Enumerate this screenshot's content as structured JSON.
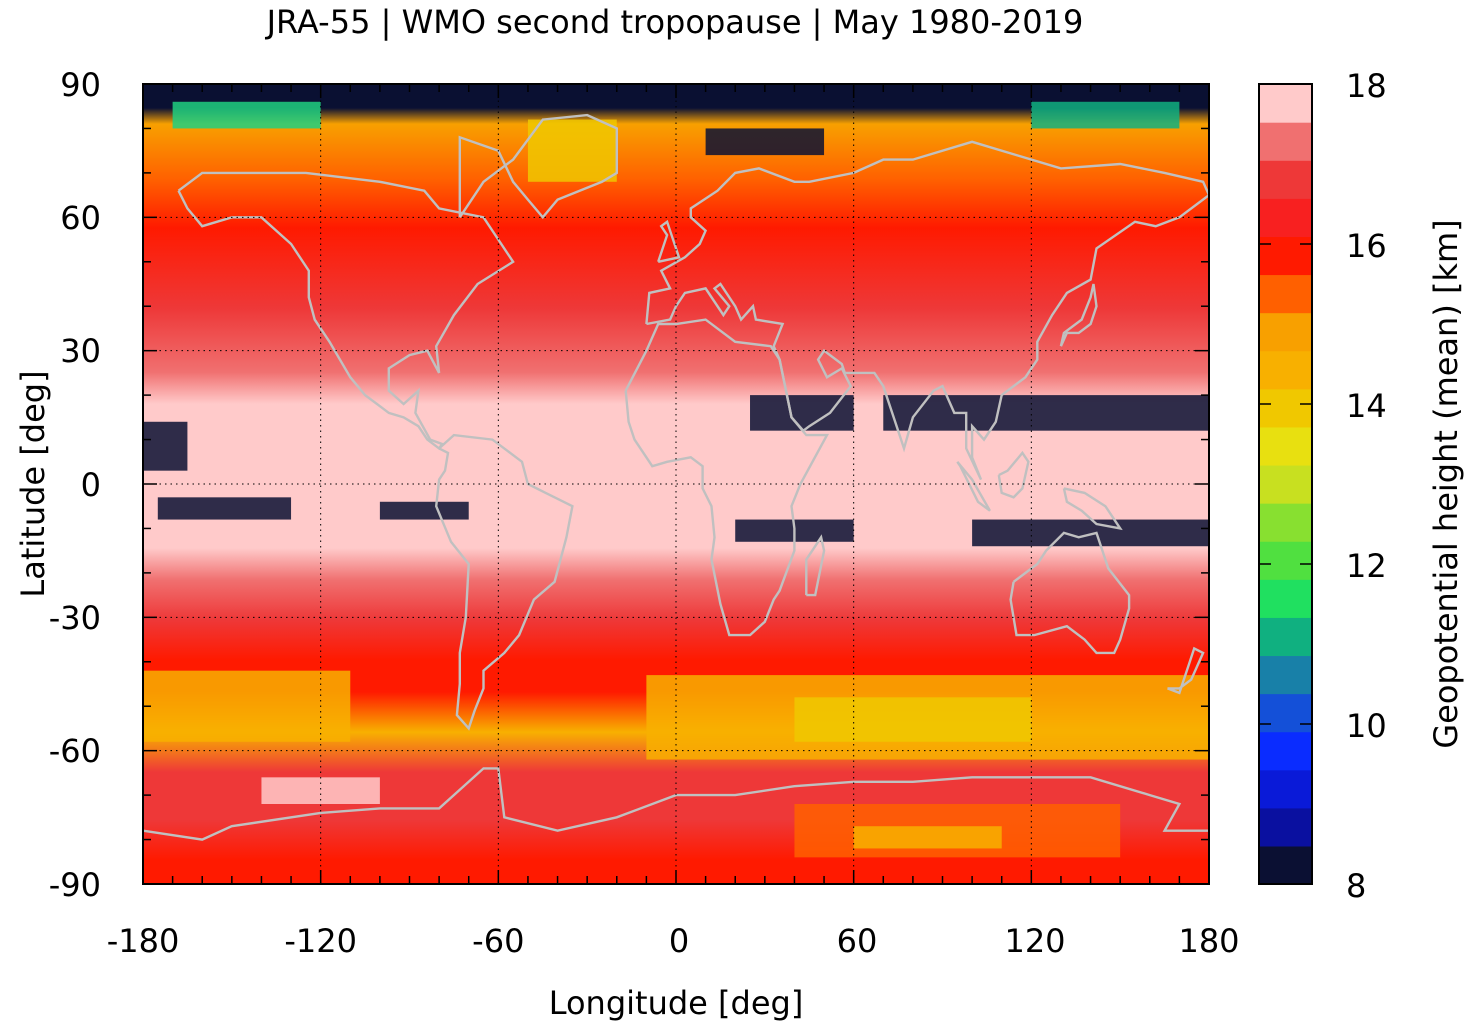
{
  "chart_data": {
    "type": "heatmap",
    "title": "JRA-55 | WMO second tropopause | May 1980-2019",
    "xlabel": "Longitude [deg]",
    "ylabel": "Latitude [deg]",
    "colorbar_label": "Geopotential height (mean) [km]",
    "xlim": [
      -180,
      180
    ],
    "ylim": [
      -90,
      90
    ],
    "xticks": [
      "-180",
      "-120",
      "-60",
      "0",
      "60",
      "120",
      "180"
    ],
    "yticks": [
      "90",
      "60",
      "30",
      "0",
      "-30",
      "-60",
      "-90"
    ],
    "x_tick_values": [
      -180,
      -120,
      -60,
      0,
      60,
      120,
      180
    ],
    "y_tick_values": [
      90,
      60,
      30,
      0,
      -30,
      -60,
      -90
    ],
    "colorbar_range": [
      8,
      18
    ],
    "colorbar_ticks": [
      "18",
      "16",
      "14",
      "12",
      "10",
      "8"
    ],
    "colorbar_tick_values": [
      18,
      16,
      14,
      12,
      10,
      8
    ],
    "colorbar_colors": [
      "#0b1033",
      "#0a10a0",
      "#0a1ad8",
      "#0a2cff",
      "#1450d8",
      "#1880a8",
      "#10b080",
      "#20e060",
      "#50e040",
      "#88e030",
      "#c8e020",
      "#e8e010",
      "#f0c800",
      "#f8b000",
      "#f8a000",
      "#ff6000",
      "#ff1a00",
      "#f82020",
      "#ee3838",
      "#f07070",
      "#ffcaca"
    ],
    "grid": true,
    "zonal_mean_km": [
      {
        "lat": 85,
        "value": 8.6
      },
      {
        "lat": 75,
        "value": 14.8
      },
      {
        "lat": 65,
        "value": 15.3
      },
      {
        "lat": 55,
        "value": 15.9
      },
      {
        "lat": 45,
        "value": 16.2
      },
      {
        "lat": 35,
        "value": 16.6
      },
      {
        "lat": 25,
        "value": 17.1
      },
      {
        "lat": 15,
        "value": 17.7
      },
      {
        "lat": 5,
        "value": 17.8
      },
      {
        "lat": -5,
        "value": 17.8
      },
      {
        "lat": -15,
        "value": 17.7
      },
      {
        "lat": -25,
        "value": 16.9
      },
      {
        "lat": -35,
        "value": 16.3
      },
      {
        "lat": -45,
        "value": 16.1
      },
      {
        "lat": -55,
        "value": 15.2
      },
      {
        "lat": -65,
        "value": 16.4
      },
      {
        "lat": -75,
        "value": 16.5
      },
      {
        "lat": -85,
        "value": 16.6
      }
    ]
  }
}
